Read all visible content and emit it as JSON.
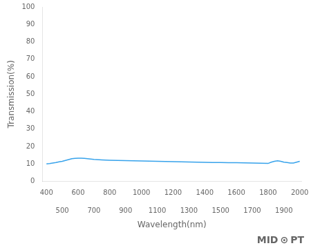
{
  "chart_data": {
    "type": "line",
    "xlabel": "Wavelength(nm)",
    "ylabel": "Transmission(%)",
    "x": [
      400,
      420,
      440,
      460,
      480,
      500,
      520,
      540,
      560,
      580,
      600,
      620,
      640,
      660,
      680,
      700,
      750,
      800,
      850,
      900,
      950,
      1000,
      1050,
      1100,
      1150,
      1200,
      1250,
      1300,
      1350,
      1400,
      1450,
      1500,
      1550,
      1600,
      1650,
      1700,
      1750,
      1800,
      1820,
      1840,
      1860,
      1880,
      1900,
      1920,
      1940,
      1960,
      1980,
      2000
    ],
    "values": [
      10.0,
      10.2,
      10.5,
      10.8,
      11.2,
      11.5,
      12.0,
      12.5,
      13.0,
      13.2,
      13.3,
      13.3,
      13.2,
      13.0,
      12.8,
      12.6,
      12.3,
      12.1,
      12.0,
      11.9,
      11.8,
      11.7,
      11.6,
      11.5,
      11.4,
      11.3,
      11.2,
      11.1,
      11.0,
      10.9,
      10.8,
      10.8,
      10.7,
      10.7,
      10.6,
      10.5,
      10.4,
      10.3,
      11.0,
      11.5,
      11.8,
      11.5,
      11.0,
      10.8,
      10.5,
      10.5,
      11.0,
      11.5
    ],
    "xlim": [
      375,
      2010
    ],
    "xticks": [
      400,
      600,
      800,
      1000,
      1200,
      1400,
      1600,
      1800,
      2000
    ],
    "x2lim": [
      375,
      2010
    ],
    "x2ticks": [
      500,
      700,
      900,
      1100,
      1300,
      1500,
      1700,
      1900
    ],
    "ylim": [
      0,
      100
    ],
    "yticks": [
      0,
      10,
      20,
      30,
      40,
      50,
      60,
      70,
      80,
      90,
      100
    ],
    "grid": false,
    "annotations": [
      "MID",
      "⊙",
      "PT"
    ]
  }
}
